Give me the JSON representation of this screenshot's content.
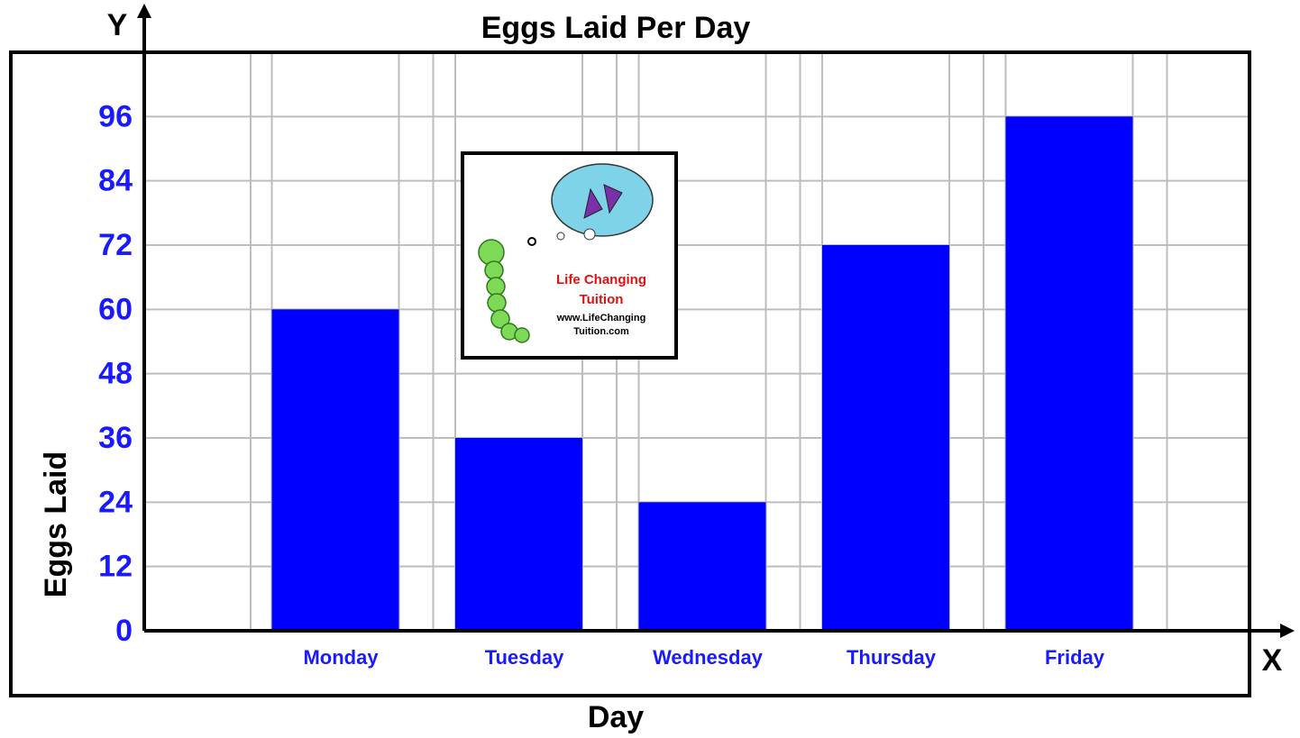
{
  "chart_data": {
    "type": "bar",
    "title": "Eggs Laid Per Day",
    "x_label": "Day",
    "y_label": "Eggs Laid",
    "x_axis_letter": "X",
    "y_axis_letter": "Y",
    "categories": [
      "Monday",
      "Tuesday",
      "Wednesday",
      "Thursday",
      "Friday"
    ],
    "values": [
      60,
      36,
      24,
      72,
      96
    ],
    "color": "#0000ff",
    "ylim": [
      0,
      108
    ],
    "yticks": [
      0,
      12,
      24,
      36,
      48,
      60,
      72,
      84,
      96
    ],
    "grid": true,
    "annotations": [
      "Life Changing",
      "Tuition",
      "www.LifeChanging",
      "Tuition.com"
    ]
  }
}
